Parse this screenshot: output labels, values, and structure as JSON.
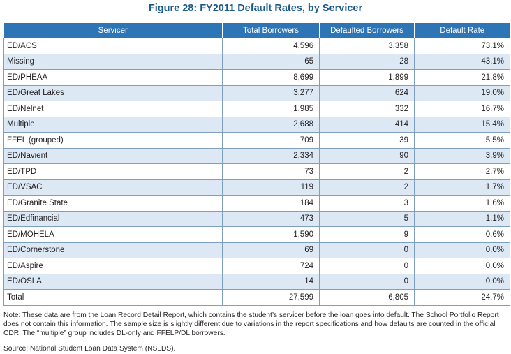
{
  "title": "Figure 28: FY2011 Default Rates, by Servicer",
  "table": {
    "headers": [
      "Servicer",
      "Total Borrowers",
      "Defaulted Borrowers",
      "Default Rate"
    ],
    "rows": [
      [
        "ED/ACS",
        "4,596",
        "3,358",
        "73.1%"
      ],
      [
        "Missing",
        "65",
        "28",
        "43.1%"
      ],
      [
        "ED/PHEAA",
        "8,699",
        "1,899",
        "21.8%"
      ],
      [
        "ED/Great Lakes",
        "3,277",
        "624",
        "19.0%"
      ],
      [
        "ED/Nelnet",
        "1,985",
        "332",
        "16.7%"
      ],
      [
        "Multiple",
        "2,688",
        "414",
        "15.4%"
      ],
      [
        "FFEL (grouped)",
        "709",
        "39",
        "5.5%"
      ],
      [
        "ED/Navient",
        "2,334",
        "90",
        "3.9%"
      ],
      [
        "ED/TPD",
        "73",
        "2",
        "2.7%"
      ],
      [
        "ED/VSAC",
        "119",
        "2",
        "1.7%"
      ],
      [
        "ED/Granite State",
        "184",
        "3",
        "1.6%"
      ],
      [
        "ED/Edfinancial",
        "473",
        "5",
        "1.1%"
      ],
      [
        "ED/MOHELA",
        "1,590",
        "9",
        "0.6%"
      ],
      [
        "ED/Cornerstone",
        "69",
        "0",
        "0.0%"
      ],
      [
        "ED/Aspire",
        "724",
        "0",
        "0.0%"
      ],
      [
        "ED/OSLA",
        "14",
        "0",
        "0.0%"
      ],
      [
        "Total",
        "27,599",
        "6,805",
        "24.7%"
      ]
    ]
  },
  "note": "Note: These data are from the Loan Record Detail Report, which contains the student’s servicer before the loan goes into default. The School Portfolio Report does not contain this information. The sample size is slightly different due to variations in the report specifications and how defaults are counted in the official CDR. The “multiple” group includes DL-only and FFELP/DL borrowers.",
  "source": "Source: National Student Loan Data System (NSLDS).",
  "colors": {
    "title": "#1a5a8a",
    "header_bg": "#2e75b6",
    "stripe": "#dce9f5",
    "border": "#7f9fbf"
  }
}
